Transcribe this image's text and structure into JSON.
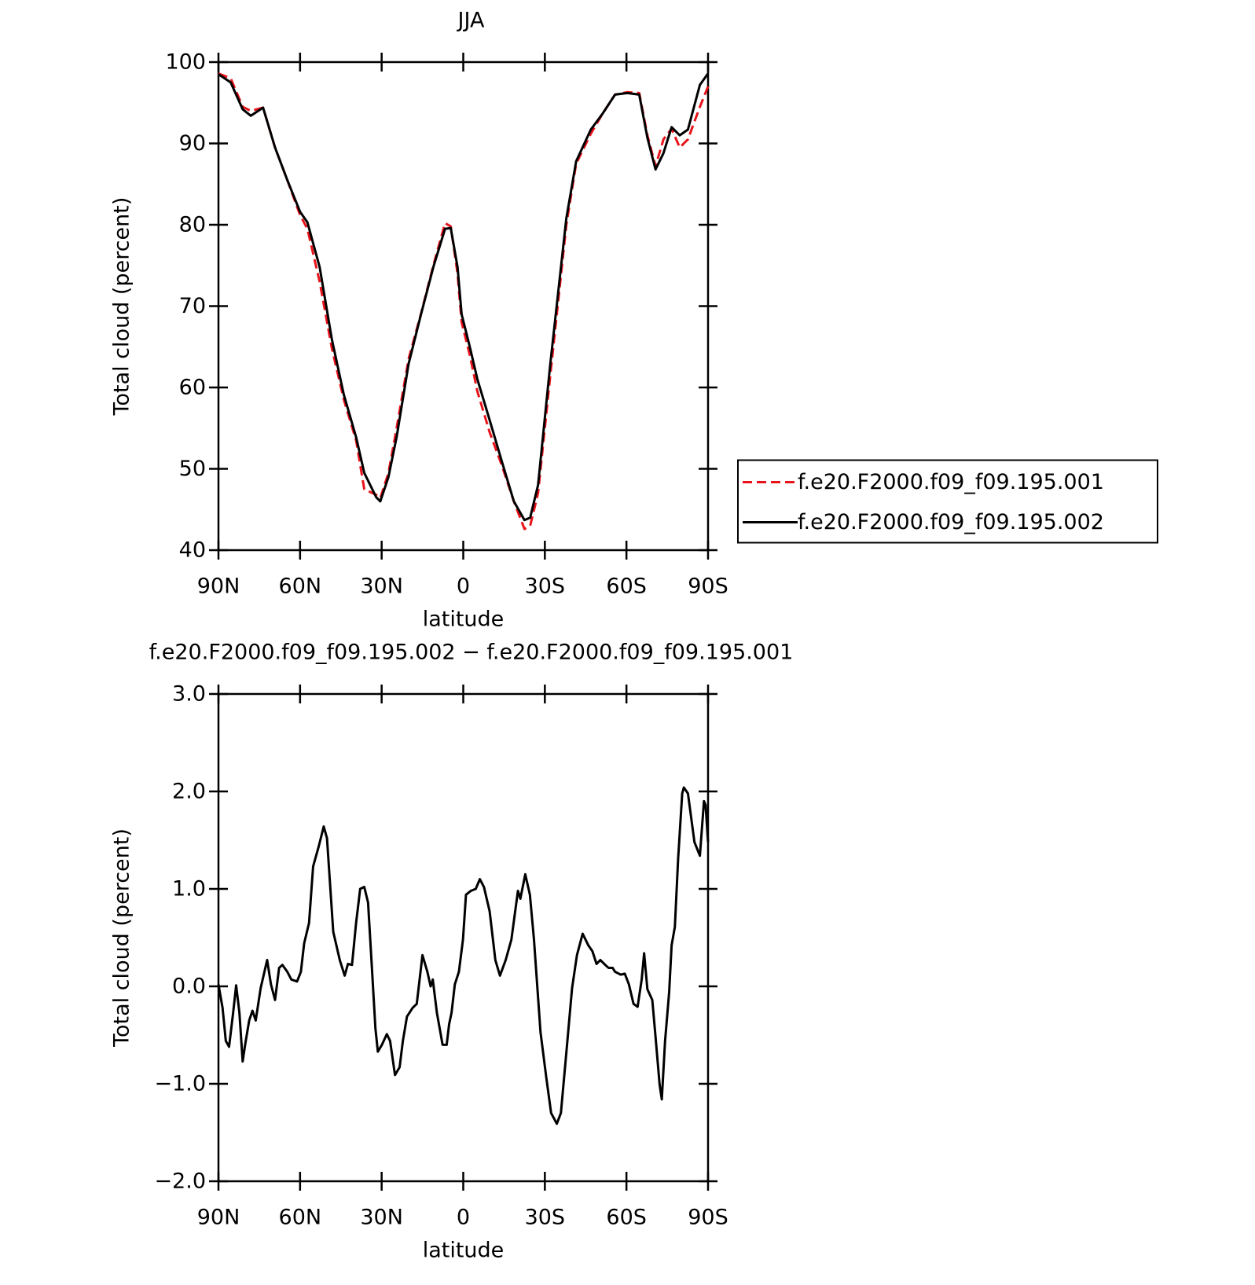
{
  "chart_data": [
    {
      "type": "line",
      "title": "JJA",
      "x_label": "latitude",
      "y_label": "Total cloud (percent)",
      "x": [
        90,
        85.5,
        81.1,
        78.1,
        73.6,
        69.2,
        64.7,
        60,
        57.3,
        52.8,
        48.3,
        43.9,
        39.4,
        36.4,
        32,
        30.5,
        27.5,
        24.5,
        20.1,
        15.6,
        11,
        6.7,
        4.6,
        2.1,
        0.6,
        -2.4,
        -5.2,
        -9.7,
        -14.1,
        -18.6,
        -22.5,
        -24.6,
        -27.5,
        -32,
        -37.9,
        -41.5,
        -46.9,
        -51.3,
        -55.8,
        -60.3,
        -64.7,
        -67.7,
        -70.7,
        -73.6,
        -76.6,
        -79.6,
        -82.6,
        -87,
        -90
      ],
      "series": [
        {
          "name": "f.e20.F2000.f09_f09.195.001",
          "color": "#e8141b",
          "dash": "dashed",
          "values": [
            98.6,
            98.0,
            94.5,
            94.0,
            94.4,
            89.5,
            85.5,
            81.2,
            79.5,
            73.0,
            64.8,
            58.5,
            53.5,
            47.5,
            46.8,
            46.4,
            49.5,
            55,
            63.5,
            69,
            75,
            80.2,
            79.8,
            74,
            68,
            64,
            59.5,
            54.5,
            50.5,
            46,
            42.6,
            43,
            47,
            61.5,
            80,
            87.5,
            91.2,
            93.7,
            96,
            96.3,
            96.2,
            91,
            87.2,
            90.5,
            91.8,
            89.5,
            90.5,
            94.5,
            97.0
          ]
        },
        {
          "name": "f.e20.F2000.f09_f09.195.002",
          "color": "#000000",
          "dash": "solid",
          "values": [
            98.5,
            97.5,
            94.2,
            93.4,
            94.4,
            89.5,
            85.5,
            81.6,
            80.3,
            74.8,
            65.9,
            59.1,
            53.9,
            49.5,
            46.5,
            46,
            49,
            53.9,
            62.9,
            68.9,
            74.8,
            79.5,
            79.6,
            74.8,
            69,
            65,
            61,
            56,
            51,
            46,
            43.7,
            44,
            48,
            62.9,
            80.8,
            87.8,
            91.7,
            93.7,
            96,
            96.2,
            96,
            90.7,
            86.8,
            88.8,
            92,
            91,
            91.7,
            97.2,
            98.6
          ]
        }
      ],
      "xlim": [
        90,
        -90
      ],
      "xticks": [
        {
          "value": 90,
          "label": "90N"
        },
        {
          "value": 60,
          "label": "60N"
        },
        {
          "value": 30,
          "label": "30N"
        },
        0,
        {
          "value": -30,
          "label": "30S"
        },
        {
          "value": -60,
          "label": "60S"
        },
        {
          "value": -90,
          "label": "90S"
        }
      ],
      "ylim": [
        40,
        100
      ],
      "yticks": [
        40,
        50,
        60,
        70,
        80,
        90,
        100
      ],
      "legend": "right"
    },
    {
      "type": "line",
      "title": "f.e20.F2000.f09_f09.195.002 − f.e20.F2000.f09_f09.195.001",
      "x_label": "latitude",
      "y_label": "Total cloud (percent)",
      "x": [
        90,
        88.5,
        87.3,
        86.1,
        84.6,
        83.5,
        82.3,
        81.1,
        80.2,
        78.7,
        77.5,
        76.3,
        74.5,
        72.1,
        70.7,
        69.2,
        67.7,
        66.5,
        64.7,
        63.2,
        61.1,
        59.7,
        58.5,
        56.7,
        55.2,
        53.1,
        51.3,
        50.1,
        47.8,
        45.4,
        43.6,
        42.4,
        40.9,
        39.4,
        37.9,
        36.4,
        35.0,
        33.5,
        32.3,
        31.4,
        29.9,
        28.1,
        26.9,
        25.1,
        23.4,
        22.2,
        20.7,
        18.6,
        17.1,
        15.0,
        13.2,
        12.0,
        11.2,
        9.7,
        7.6,
        6.1,
        5.2,
        4.3,
        3.1,
        1.6,
        0.1,
        -1.0,
        -2.8,
        -4.6,
        -6.1,
        -7.6,
        -9.7,
        -11.8,
        -13.5,
        -15.6,
        -17.7,
        -20.1,
        -21.0,
        -22.8,
        -24.5,
        -26.0,
        -28.4,
        -30.5,
        -32.3,
        -34.4,
        -35.9,
        -37.9,
        -40.0,
        -41.8,
        -43.9,
        -46.0,
        -47.5,
        -49.0,
        -50.4,
        -52.2,
        -53.4,
        -54.9,
        -55.8,
        -57.9,
        -59.4,
        -60.9,
        -62.6,
        -64.1,
        -65.6,
        -66.5,
        -67.7,
        -69.5,
        -70.7,
        -72.2,
        -73.0,
        -74.2,
        -75.7,
        -76.6,
        -77.8,
        -79.0,
        -80.5,
        -81.1,
        -82.6,
        -83.8,
        -85.0,
        -87.0,
        -88.5,
        -89.1,
        -90
      ],
      "color": "#000000",
      "values": [
        0.02,
        -0.22,
        -0.56,
        -0.62,
        -0.27,
        0.01,
        -0.27,
        -0.77,
        -0.6,
        -0.35,
        -0.25,
        -0.35,
        -0.02,
        0.27,
        0.02,
        -0.14,
        0.19,
        0.22,
        0.15,
        0.07,
        0.05,
        0.15,
        0.44,
        0.65,
        1.23,
        1.44,
        1.64,
        1.52,
        0.56,
        0.27,
        0.11,
        0.23,
        0.22,
        0.65,
        1.0,
        1.02,
        0.86,
        0.15,
        -0.43,
        -0.67,
        -0.6,
        -0.49,
        -0.56,
        -0.91,
        -0.83,
        -0.56,
        -0.31,
        -0.22,
        -0.18,
        0.32,
        0.15,
        0.0,
        0.07,
        -0.27,
        -0.6,
        -0.6,
        -0.39,
        -0.27,
        0.02,
        0.15,
        0.48,
        0.94,
        0.98,
        1.0,
        1.1,
        1.02,
        0.77,
        0.27,
        0.11,
        0.27,
        0.48,
        0.98,
        0.9,
        1.15,
        0.94,
        0.48,
        -0.47,
        -0.93,
        -1.3,
        -1.41,
        -1.3,
        -0.68,
        -0.02,
        0.32,
        0.54,
        0.42,
        0.36,
        0.23,
        0.27,
        0.22,
        0.19,
        0.19,
        0.15,
        0.12,
        0.13,
        0.02,
        -0.18,
        -0.21,
        0.07,
        0.34,
        -0.03,
        -0.14,
        -0.52,
        -1.01,
        -1.16,
        -0.56,
        -0.06,
        0.42,
        0.61,
        1.31,
        1.98,
        2.04,
        1.98,
        1.73,
        1.48,
        1.34,
        1.9,
        1.86,
        1.48
      ],
      "xlim": [
        90,
        -90
      ],
      "xticks": [
        {
          "value": 90,
          "label": "90N"
        },
        {
          "value": 60,
          "label": "60N"
        },
        {
          "value": 30,
          "label": "30N"
        },
        0,
        {
          "value": -30,
          "label": "30S"
        },
        {
          "value": -60,
          "label": "60S"
        },
        {
          "value": -90,
          "label": "90S"
        }
      ],
      "ylim": [
        -2,
        3
      ],
      "yticks": [
        {
          "value": -2,
          "label": "−2.0"
        },
        {
          "value": -1,
          "label": "−1.0"
        },
        {
          "value": 0,
          "label": "0.0"
        },
        {
          "value": 1,
          "label": "1.0"
        },
        {
          "value": 2,
          "label": "2.0"
        },
        {
          "value": 3,
          "label": "3.0"
        }
      ]
    }
  ]
}
